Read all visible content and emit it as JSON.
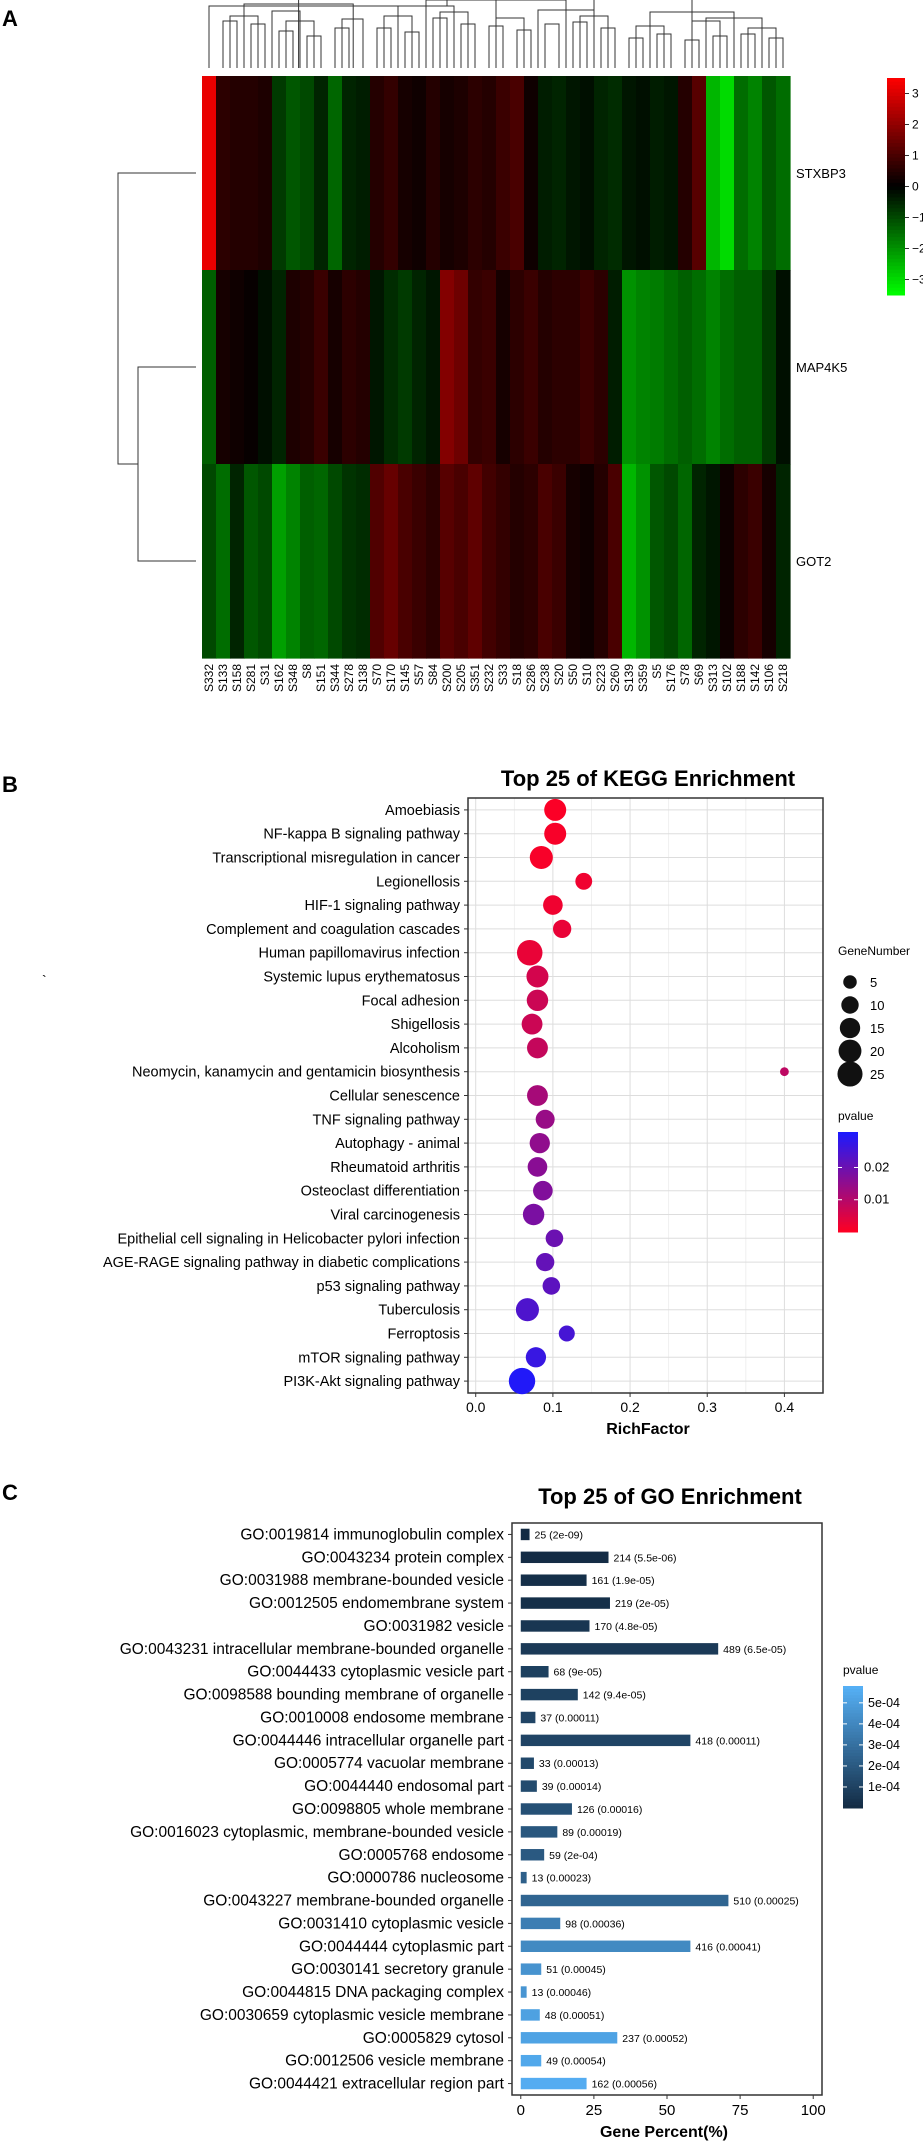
{
  "panels": {
    "a": {
      "letter": "A"
    },
    "b": {
      "letter": "B"
    },
    "c": {
      "letter": "C"
    }
  },
  "chart_data": [
    {
      "type": "heatmap",
      "rows": [
        "STXBP3",
        "MAP4K5",
        "GOT2"
      ],
      "columns": [
        "S332",
        "S133",
        "S158",
        "S281",
        "S31",
        "S162",
        "S348",
        "S8",
        "S151",
        "S344",
        "S278",
        "S138",
        "S70",
        "S170",
        "S145",
        "S57",
        "S84",
        "S200",
        "S205",
        "S351",
        "S232",
        "S33",
        "S18",
        "S286",
        "S238",
        "S20",
        "S50",
        "S10",
        "S223",
        "S260",
        "S139",
        "S359",
        "S5",
        "S176",
        "S78",
        "S69",
        "S313",
        "S102",
        "S188",
        "S142",
        "S106",
        "S218"
      ],
      "values": [
        [
          3.2,
          0.6,
          0.5,
          0.5,
          0.4,
          -0.8,
          -1.2,
          -1.0,
          -0.5,
          -1.4,
          -0.5,
          -0.4,
          0.5,
          0.7,
          0.3,
          0.2,
          0.5,
          0.3,
          0.4,
          0.6,
          0.5,
          0.8,
          1.0,
          0.2,
          -0.4,
          -0.5,
          -0.3,
          -0.2,
          -0.5,
          -0.6,
          -0.3,
          -0.2,
          -0.4,
          -0.3,
          0.5,
          1.2,
          -2.5,
          -3.0,
          -1.5,
          -1.8,
          -1.2,
          -1.5
        ],
        [
          -1.3,
          0.3,
          0.2,
          0.1,
          -0.2,
          -0.5,
          0.4,
          0.5,
          0.8,
          0.3,
          0.6,
          0.5,
          -0.3,
          -0.6,
          -0.8,
          -0.5,
          -0.3,
          1.8,
          1.5,
          0.7,
          0.8,
          0.3,
          0.6,
          0.8,
          0.5,
          0.6,
          0.6,
          0.8,
          0.6,
          -0.4,
          -2.0,
          -1.8,
          -1.7,
          -1.5,
          -1.3,
          -1.5,
          -1.8,
          -1.5,
          -1.3,
          -1.3,
          -0.8,
          -0.2
        ],
        [
          -1.0,
          -1.5,
          -0.5,
          -1.2,
          -1.0,
          -2.2,
          -1.8,
          -1.3,
          -1.4,
          -1.0,
          -0.7,
          -0.6,
          1.1,
          1.4,
          1.0,
          0.8,
          0.6,
          1.2,
          1.0,
          1.3,
          0.9,
          0.7,
          0.5,
          0.6,
          1.0,
          0.8,
          0.3,
          0.2,
          0.5,
          1.0,
          -2.5,
          -2.0,
          -1.2,
          -1.0,
          -1.4,
          -0.5,
          -0.3,
          0.2,
          0.6,
          0.8,
          0.3,
          -0.5
        ]
      ],
      "colorbar": {
        "ticks": [
          3,
          2,
          1,
          0,
          -1,
          -2,
          -3
        ],
        "tick_labels": [
          "3",
          "2",
          "1",
          "0",
          "−1",
          "−2",
          "−3"
        ],
        "range": [
          -3.5,
          3.5
        ]
      },
      "colors": {
        "low": "#00ff00",
        "mid": "#000000",
        "high": "#ff0000"
      }
    },
    {
      "type": "scatter",
      "title": "Top 25 of KEGG Enrichment",
      "xlabel": "RichFactor",
      "xlim": [
        -0.01,
        0.45
      ],
      "xticks": [
        0.0,
        0.1,
        0.2,
        0.3,
        0.4
      ],
      "xtick_labels": [
        "0.0",
        "0.1",
        "0.2",
        "0.3",
        "0.4"
      ],
      "grid": true,
      "categories": [
        "Amoebiasis",
        "NF-kappa B signaling pathway",
        "Transcriptional misregulation in cancer",
        "Legionellosis",
        "HIF-1 signaling pathway",
        "Complement and coagulation cascades",
        "Human papillomavirus infection",
        "Systemic lupus erythematosus",
        "Focal adhesion",
        "Shigellosis",
        "Alcoholism",
        "Neomycin, kanamycin and gentamicin biosynthesis",
        "Cellular senescence",
        "TNF signaling pathway",
        "Autophagy - animal",
        "Rheumatoid arthritis",
        "Osteoclast differentiation",
        "Viral carcinogenesis",
        "Epithelial cell signaling in Helicobacter pylori infection",
        "AGE-RAGE signaling pathway in diabetic complications",
        "p53 signaling pathway",
        "Tuberculosis",
        "Ferroptosis",
        "mTOR signaling pathway",
        "PI3K-Akt signaling pathway"
      ],
      "x": [
        0.103,
        0.103,
        0.085,
        0.14,
        0.1,
        0.112,
        0.07,
        0.08,
        0.08,
        0.073,
        0.08,
        0.4,
        0.08,
        0.09,
        0.083,
        0.08,
        0.087,
        0.075,
        0.102,
        0.09,
        0.098,
        0.067,
        0.118,
        0.078,
        0.06
      ],
      "gene_number": [
        16,
        16,
        18,
        8,
        12,
        10,
        23,
        16,
        15,
        14,
        14,
        1,
        14,
        11,
        13,
        12,
        12,
        15,
        9,
        10,
        9,
        18,
        7,
        13,
        25
      ],
      "pvalue": [
        0.0005,
        0.001,
        0.001,
        0.002,
        0.002,
        0.003,
        0.003,
        0.006,
        0.007,
        0.007,
        0.008,
        0.009,
        0.012,
        0.014,
        0.015,
        0.016,
        0.017,
        0.018,
        0.02,
        0.021,
        0.022,
        0.024,
        0.025,
        0.027,
        0.03
      ],
      "size_legend": {
        "title": "GeneNumber",
        "values": [
          5,
          10,
          15,
          20,
          25
        ]
      },
      "color_legend": {
        "title": "pvalue",
        "ticks": [
          0.02,
          0.01
        ],
        "tick_labels": [
          "0.02",
          "0.01"
        ],
        "range": [
          0.0,
          0.031
        ]
      },
      "colors": {
        "low": "#ff0022",
        "high": "#1a1aff"
      },
      "annotation": "`"
    },
    {
      "type": "bar",
      "orientation": "horizontal",
      "title": "Top 25 of GO Enrichment",
      "xlabel": "Gene Percent(%)",
      "xlim": [
        -3,
        103
      ],
      "xticks": [
        0,
        25,
        50,
        75,
        100
      ],
      "xtick_labels": [
        "0",
        "25",
        "50",
        "75",
        "100"
      ],
      "categories": [
        "GO:0019814 immunoglobulin complex",
        "GO:0043234 protein complex",
        "GO:0031988 membrane-bounded vesicle",
        "GO:0012505 endomembrane system",
        "GO:0031982 vesicle",
        "GO:0043231 intracellular membrane-bounded organelle",
        "GO:0044433 cytoplasmic vesicle part",
        "GO:0098588 bounding membrane of organelle",
        "GO:0010008 endosome membrane",
        "GO:0044446 intracellular organelle part",
        "GO:0005774 vacuolar membrane",
        "GO:0044440 endosomal part",
        "GO:0098805 whole membrane",
        "GO:0016023 cytoplasmic, membrane-bounded vesicle",
        "GO:0005768 endosome",
        "GO:0000786 nucleosome",
        "GO:0043227 membrane-bounded organelle",
        "GO:0031410 cytoplasmic vesicle",
        "GO:0044444 cytoplasmic part",
        "GO:0030141 secretory granule",
        "GO:0044815 DNA packaging complex",
        "GO:0030659 cytoplasmic vesicle membrane",
        "GO:0005829 cytosol",
        "GO:0012506 vesicle membrane",
        "GO:0044421 extracellular region part"
      ],
      "values": [
        3,
        30,
        22.5,
        30.5,
        23.5,
        67.5,
        9.5,
        19.5,
        5,
        58,
        4.5,
        5.5,
        17.5,
        12.5,
        8,
        2,
        71,
        13.5,
        58,
        7,
        2,
        6.5,
        33,
        7,
        22.5
      ],
      "labels": [
        "25 (2e-09)",
        "214 (5.5e-06)",
        "161 (1.9e-05)",
        "219 (2e-05)",
        "170 (4.8e-05)",
        "489 (6.5e-05)",
        "68 (9e-05)",
        "142 (9.4e-05)",
        "37 (0.00011)",
        "418 (0.00011)",
        "33 (0.00013)",
        "39 (0.00014)",
        "126 (0.00016)",
        "89 (0.00019)",
        "59 (2e-04)",
        "13 (0.00023)",
        "510 (0.00025)",
        "98 (0.00036)",
        "416 (0.00041)",
        "51 (0.00045)",
        "13 (0.00046)",
        "48 (0.00051)",
        "237 (0.00052)",
        "49 (0.00054)",
        "162 (0.00056)"
      ],
      "pvalue": [
        2e-09,
        5.5e-06,
        1.9e-05,
        2e-05,
        4.8e-05,
        6.5e-05,
        9e-05,
        9.4e-05,
        0.00011,
        0.00011,
        0.00013,
        0.00014,
        0.00016,
        0.00019,
        0.0002,
        0.00023,
        0.00025,
        0.00036,
        0.00041,
        0.00045,
        0.00046,
        0.00051,
        0.00052,
        0.00054,
        0.00056
      ],
      "color_legend": {
        "title": "pvalue",
        "ticks": [
          0.0005,
          0.0004,
          0.0003,
          0.0002,
          0.0001
        ],
        "tick_labels": [
          "5e-04",
          "4e-04",
          "3e-04",
          "2e-04",
          "1e-04"
        ],
        "range": [
          0.0,
          0.00058
        ]
      },
      "colors": {
        "low": "#132b43",
        "high": "#56b1f7"
      }
    }
  ]
}
